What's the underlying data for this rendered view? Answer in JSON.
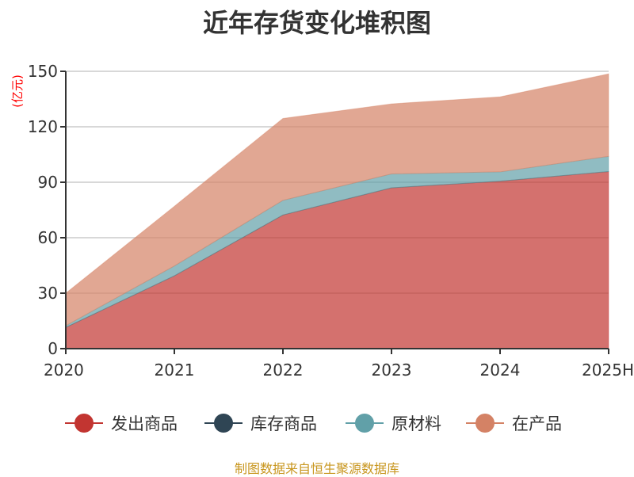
{
  "chart_data": {
    "type": "area",
    "stacked": true,
    "title": "近年存货变化堆积图",
    "ylabel": "(亿元)",
    "xlabel": "",
    "categories": [
      "2020",
      "2021",
      "2022",
      "2023",
      "2024",
      "2025H"
    ],
    "ylim": [
      0,
      150
    ],
    "yticks": [
      0,
      30,
      60,
      90,
      120,
      150
    ],
    "grid": true,
    "legend_position": "bottom",
    "series": [
      {
        "name": "发出商品",
        "color": "#c23531",
        "values": [
          11.5,
          39.4,
          72.3,
          87.0,
          90.6,
          95.8
        ]
      },
      {
        "name": "库存商品",
        "color": "#2f4554",
        "values": [
          0,
          0,
          0,
          0,
          0,
          0
        ]
      },
      {
        "name": "原材料",
        "color": "#61a0a8",
        "values": [
          0.9,
          5.3,
          7.9,
          7.5,
          5.0,
          8.2
        ]
      },
      {
        "name": "在产品",
        "color": "#d48265",
        "values": [
          17.6,
          32.3,
          44.3,
          37.9,
          40.6,
          44.6
        ]
      }
    ],
    "ylabel_color": "#ff0000"
  },
  "source": "制图数据来自恒生聚源数据库"
}
